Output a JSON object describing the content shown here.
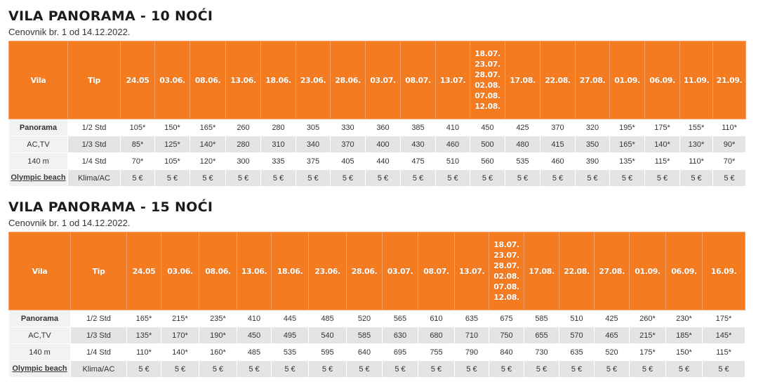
{
  "t10": {
    "title": "VILA PANORAMA - 10 NOĆI",
    "subtitle": "Cenovnik br. 1 od 14.12.2022.",
    "h_vila": "Vila",
    "h_tip": "Tip",
    "dates": [
      "24.05",
      "03.06.",
      "08.06.",
      "13.06.",
      "18.06.",
      "23.06.",
      "28.06.",
      "03.07.",
      "08.07.",
      "13.07.",
      "18.07.\n23.07.\n28.07.\n02.08.\n07.08.\n12.08.",
      "17.08.",
      "22.08.",
      "27.08.",
      "01.09.",
      "06.09.",
      "11.09.",
      "21.09."
    ],
    "vila": {
      "name": "Panorama",
      "line2": "AC,TV",
      "line3": "140 m",
      "link": "Olympic beach"
    },
    "rows": [
      {
        "tip": "1/2 Std",
        "prices": [
          "105*",
          "150*",
          "165*",
          "260",
          "280",
          "305",
          "330",
          "360",
          "385",
          "410",
          "450",
          "425",
          "370",
          "320",
          "195*",
          "175*",
          "155*",
          "110*"
        ]
      },
      {
        "tip": "1/3 Std",
        "prices": [
          "85*",
          "125*",
          "140*",
          "280",
          "310",
          "340",
          "370",
          "400",
          "430",
          "460",
          "500",
          "480",
          "415",
          "350",
          "165*",
          "140*",
          "130*",
          "90*"
        ]
      },
      {
        "tip": "1/4 Std",
        "prices": [
          "70*",
          "105*",
          "120*",
          "300",
          "335",
          "375",
          "405",
          "440",
          "475",
          "510",
          "560",
          "535",
          "460",
          "390",
          "135*",
          "115*",
          "110*",
          "70*"
        ]
      },
      {
        "tip": "Klima/AC",
        "prices": [
          "5 €",
          "5 €",
          "5 €",
          "5 €",
          "5 €",
          "5 €",
          "5 €",
          "5 €",
          "5 €",
          "5 €",
          "5 €",
          "5 €",
          "5 €",
          "5 €",
          "5 €",
          "5 €",
          "5 €",
          "5 €"
        ]
      }
    ]
  },
  "t15": {
    "title": "VILA PANORAMA - 15 NOĆI",
    "subtitle": "Cenovnik br. 1 od 14.12.2022.",
    "h_vila": "Vila",
    "h_tip": "Tip",
    "dates": [
      "24.05",
      "03.06.",
      "08.06.",
      "13.06.",
      "18.06.",
      "23.06.",
      "28.06.",
      "03.07.",
      "08.07.",
      "13.07.",
      "18.07.\n23.07.\n28.07.\n02.08.\n07.08.\n12.08.",
      "17.08.",
      "22.08.",
      "27.08.",
      "01.09.",
      "06.09.",
      "16.09."
    ],
    "vila": {
      "name": "Panorama",
      "line2": "AC,TV",
      "line3": "140 m",
      "link": "Olympic beach"
    },
    "rows": [
      {
        "tip": "1/2 Std",
        "prices": [
          "165*",
          "215*",
          "235*",
          "410",
          "445",
          "485",
          "520",
          "565",
          "610",
          "635",
          "675",
          "585",
          "510",
          "425",
          "260*",
          "230*",
          "175*"
        ]
      },
      {
        "tip": "1/3 Std",
        "prices": [
          "135*",
          "170*",
          "190*",
          "450",
          "495",
          "540",
          "585",
          "630",
          "680",
          "710",
          "750",
          "655",
          "570",
          "465",
          "215*",
          "185*",
          "145*"
        ]
      },
      {
        "tip": "1/4 Std",
        "prices": [
          "110*",
          "140*",
          "160*",
          "485",
          "535",
          "595",
          "640",
          "695",
          "755",
          "790",
          "840",
          "730",
          "635",
          "520",
          "175*",
          "150*",
          "115*"
        ]
      },
      {
        "tip": "Klima/AC",
        "prices": [
          "5 €",
          "5 €",
          "5 €",
          "5 €",
          "5 €",
          "5 €",
          "5 €",
          "5 €",
          "5 €",
          "5 €",
          "5 €",
          "5 €",
          "5 €",
          "5 €",
          "5 €",
          "5 €",
          "5 €"
        ]
      }
    ]
  }
}
